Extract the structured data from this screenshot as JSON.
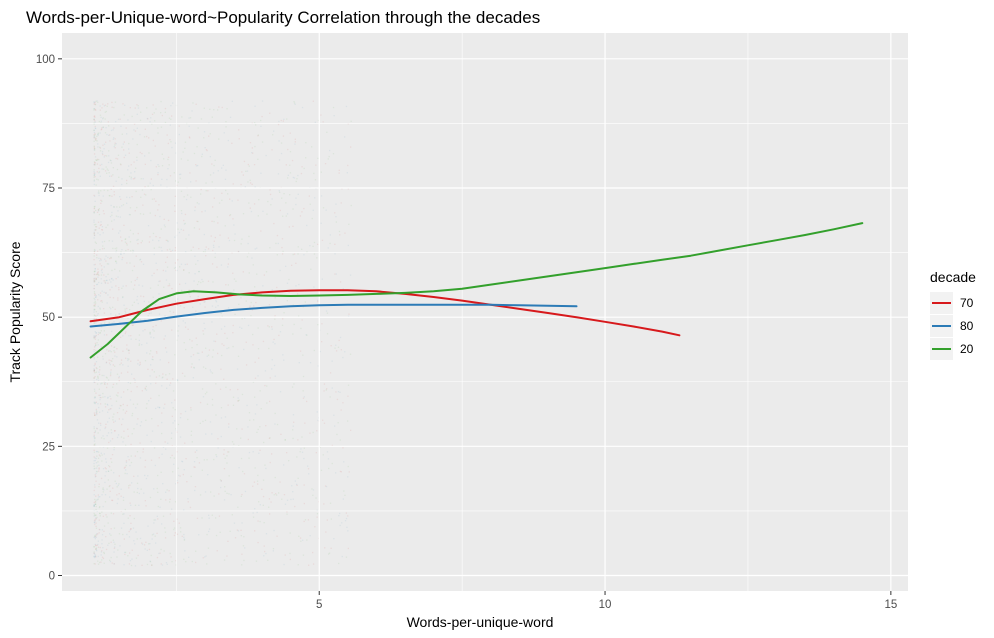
{
  "chart_data": {
    "type": "line",
    "title": "Words-per-Unique-word~Popularity Correlation through the decades",
    "xlabel": "Words-per-unique-word",
    "ylabel": "Track Popularity Score",
    "xlim": [
      0.5,
      15.3
    ],
    "ylim": [
      -3,
      105
    ],
    "x_ticks": [
      5,
      10,
      15
    ],
    "x_tick_labels": [
      "5",
      "10",
      "15"
    ],
    "y_ticks": [
      0,
      25,
      50,
      75,
      100
    ],
    "y_tick_labels": [
      "0",
      "25",
      "50",
      "75",
      "100"
    ],
    "grid": true,
    "background": "#ebebeb",
    "legend": {
      "title": "decade",
      "position": "right"
    },
    "series": [
      {
        "name": "70",
        "color": "#d7191c",
        "x": [
          1.0,
          1.5,
          2.0,
          2.5,
          3.0,
          3.5,
          4.0,
          4.5,
          5.0,
          5.5,
          6.0,
          6.5,
          7.0,
          7.5,
          8.0,
          8.5,
          9.0,
          9.5,
          10.0,
          10.5,
          11.0,
          11.3
        ],
        "y": [
          49.2,
          50.0,
          51.4,
          52.6,
          53.5,
          54.3,
          54.8,
          55.1,
          55.2,
          55.2,
          55.0,
          54.5,
          53.9,
          53.2,
          52.4,
          51.6,
          50.8,
          50.0,
          49.1,
          48.2,
          47.2,
          46.5
        ]
      },
      {
        "name": "80",
        "color": "#2c7bb6",
        "x": [
          1.0,
          1.5,
          2.0,
          2.5,
          3.0,
          3.5,
          4.0,
          4.5,
          5.0,
          5.5,
          6.0,
          6.5,
          7.0,
          7.5,
          8.0,
          8.5,
          9.0,
          9.5
        ],
        "y": [
          48.2,
          48.7,
          49.3,
          50.1,
          50.8,
          51.4,
          51.8,
          52.1,
          52.3,
          52.4,
          52.4,
          52.4,
          52.4,
          52.4,
          52.4,
          52.3,
          52.2,
          52.1
        ]
      },
      {
        "name": "20",
        "color": "#33a02c",
        "x": [
          1.0,
          1.3,
          1.6,
          1.9,
          2.2,
          2.5,
          2.8,
          3.2,
          3.6,
          4.0,
          4.5,
          5.0,
          5.5,
          6.0,
          6.5,
          7.0,
          7.5,
          8.0,
          8.5,
          9.0,
          9.5,
          10.0,
          10.5,
          11.0,
          11.5,
          12.0,
          12.5,
          13.0,
          13.5,
          14.0,
          14.5
        ],
        "y": [
          42.2,
          44.8,
          48.0,
          51.2,
          53.5,
          54.6,
          55.0,
          54.8,
          54.4,
          54.2,
          54.1,
          54.2,
          54.3,
          54.5,
          54.7,
          55.0,
          55.5,
          56.3,
          57.1,
          57.9,
          58.7,
          59.5,
          60.3,
          61.1,
          61.9,
          62.9,
          63.9,
          64.9,
          65.9,
          67.0,
          68.2
        ]
      }
    ]
  }
}
